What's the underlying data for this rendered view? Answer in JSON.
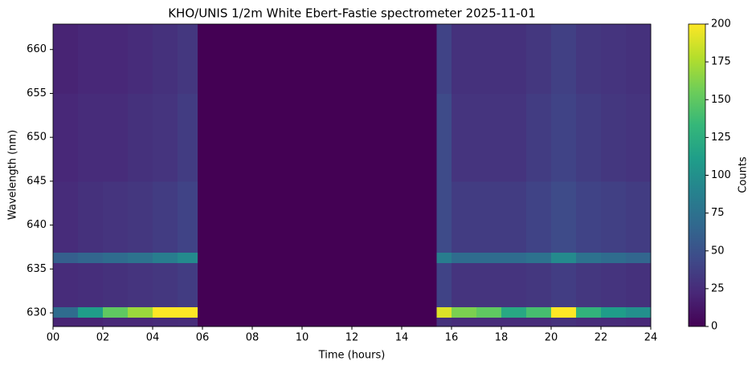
{
  "chart_data": {
    "type": "heatmap",
    "title": "KHO/UNIS 1/2m White Ebert-Fastie spectrometer 2025-11-01",
    "x_label": "Time (hours)",
    "y_label": "Wavelength (nm)",
    "colorbar_label": "Counts",
    "colormap": "viridis",
    "xlim": [
      0,
      24
    ],
    "ylim": [
      628.45,
      662.9
    ],
    "clim": [
      0,
      200
    ],
    "xticks": [
      {
        "value": 0,
        "label": "00"
      },
      {
        "value": 2,
        "label": "02"
      },
      {
        "value": 4,
        "label": "04"
      },
      {
        "value": 6,
        "label": "06"
      },
      {
        "value": 8,
        "label": "08"
      },
      {
        "value": 10,
        "label": "10"
      },
      {
        "value": 12,
        "label": "12"
      },
      {
        "value": 14,
        "label": "14"
      },
      {
        "value": 16,
        "label": "16"
      },
      {
        "value": 18,
        "label": "18"
      },
      {
        "value": 20,
        "label": "20"
      },
      {
        "value": 22,
        "label": "22"
      },
      {
        "value": 24,
        "label": "24"
      }
    ],
    "yticks": [
      630,
      635,
      640,
      645,
      650,
      655,
      660
    ],
    "cticks": [
      0,
      25,
      50,
      75,
      100,
      125,
      150,
      175,
      200
    ],
    "x_edges": [
      0,
      1,
      2,
      3,
      4,
      5,
      5.8,
      15.4,
      16,
      17,
      18,
      19,
      20,
      21,
      22,
      23,
      24
    ],
    "y_edges": [
      628.45,
      629.5,
      630.7,
      635.7,
      636.9,
      645,
      655,
      662.9
    ],
    "z": [
      [
        20,
        20,
        22,
        22,
        24,
        25,
        0,
        28,
        25,
        25,
        25,
        25,
        28,
        25,
        24,
        22
      ],
      [
        70,
        110,
        150,
        170,
        200,
        200,
        0,
        190,
        160,
        150,
        120,
        140,
        200,
        130,
        110,
        100
      ],
      [
        25,
        26,
        28,
        30,
        32,
        35,
        0,
        40,
        30,
        30,
        30,
        32,
        36,
        32,
        30,
        28
      ],
      [
        60,
        65,
        70,
        75,
        85,
        95,
        0,
        85,
        70,
        70,
        70,
        75,
        95,
        75,
        70,
        65
      ],
      [
        25,
        28,
        30,
        32,
        35,
        40,
        0,
        45,
        35,
        35,
        35,
        40,
        45,
        40,
        38,
        35
      ],
      [
        22,
        25,
        25,
        28,
        30,
        35,
        0,
        45,
        30,
        30,
        30,
        35,
        40,
        35,
        32,
        30
      ],
      [
        20,
        22,
        22,
        25,
        28,
        32,
        0,
        40,
        28,
        28,
        28,
        32,
        38,
        32,
        30,
        28
      ]
    ]
  }
}
